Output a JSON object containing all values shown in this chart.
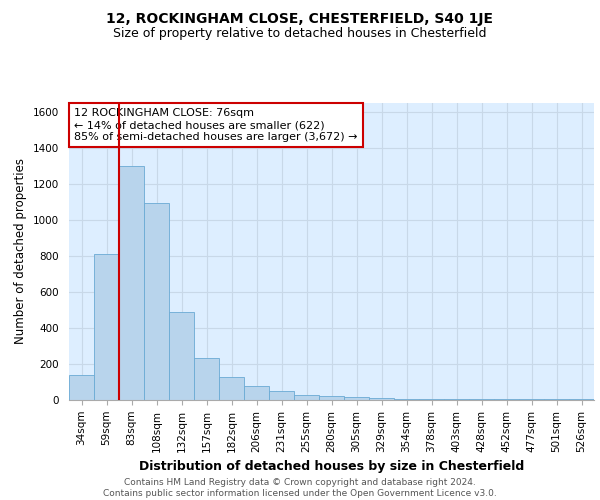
{
  "title_line1": "12, ROCKINGHAM CLOSE, CHESTERFIELD, S40 1JE",
  "title_line2": "Size of property relative to detached houses in Chesterfield",
  "xlabel": "Distribution of detached houses by size in Chesterfield",
  "ylabel": "Number of detached properties",
  "categories": [
    "34sqm",
    "59sqm",
    "83sqm",
    "108sqm",
    "132sqm",
    "157sqm",
    "182sqm",
    "206sqm",
    "231sqm",
    "255sqm",
    "280sqm",
    "305sqm",
    "329sqm",
    "354sqm",
    "378sqm",
    "403sqm",
    "428sqm",
    "452sqm",
    "477sqm",
    "501sqm",
    "526sqm"
  ],
  "values": [
    140,
    810,
    1300,
    1090,
    490,
    235,
    130,
    75,
    50,
    30,
    20,
    15,
    10,
    5,
    5,
    5,
    5,
    5,
    5,
    5,
    5
  ],
  "bar_color": "#b8d4ec",
  "bar_edge_color": "#6aaad4",
  "vline_color": "#cc0000",
  "vline_x": 1.5,
  "annotation_text": "12 ROCKINGHAM CLOSE: 76sqm\n← 14% of detached houses are smaller (622)\n85% of semi-detached houses are larger (3,672) →",
  "annotation_box_color": "#ffffff",
  "annotation_box_edge_color": "#cc0000",
  "ylim": [
    0,
    1650
  ],
  "yticks": [
    0,
    200,
    400,
    600,
    800,
    1000,
    1200,
    1400,
    1600
  ],
  "grid_color": "#c8d8e8",
  "bg_color": "#ddeeff",
  "footer": "Contains HM Land Registry data © Crown copyright and database right 2024.\nContains public sector information licensed under the Open Government Licence v3.0.",
  "title1_fontsize": 10,
  "title2_fontsize": 9,
  "xlabel_fontsize": 9,
  "ylabel_fontsize": 8.5,
  "tick_fontsize": 7.5,
  "annot_fontsize": 8,
  "footer_fontsize": 6.5
}
